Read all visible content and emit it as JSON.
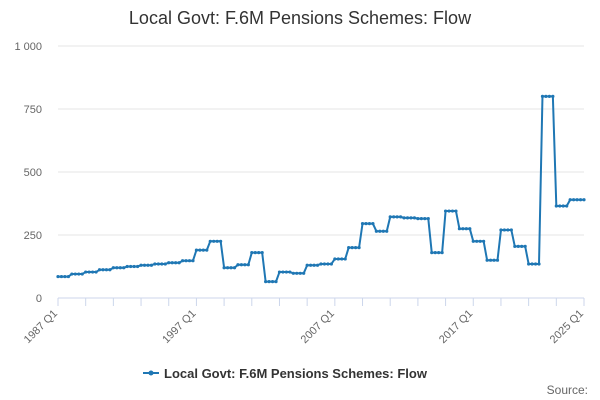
{
  "chart_data": {
    "type": "line",
    "title": "Local Govt: F.6M Pensions Schemes: Flow",
    "xlabel": "",
    "ylabel": "",
    "ylim": [
      0,
      1000
    ],
    "y_ticks": [
      0,
      250,
      500,
      750,
      1000
    ],
    "y_tick_labels": [
      "0",
      "250",
      "500",
      "750",
      "1 000"
    ],
    "x_tick_labels": [
      "1987 Q1",
      "1997 Q1",
      "2007 Q1",
      "2017 Q1",
      "2025 Q1"
    ],
    "x_range": [
      "1987 Q1",
      "2025 Q1"
    ],
    "grid": "horizontal",
    "legend_position": "bottom",
    "series": [
      {
        "name": "Local Govt: F.6M Pensions Schemes: Flow",
        "color": "#1f77b4",
        "segments": [
          {
            "start": "1987 Q1",
            "value": 85,
            "quarters": 4
          },
          {
            "start": "1988 Q1",
            "value": 95,
            "quarters": 4
          },
          {
            "start": "1989 Q1",
            "value": 103,
            "quarters": 4
          },
          {
            "start": "1990 Q1",
            "value": 112,
            "quarters": 4
          },
          {
            "start": "1991 Q1",
            "value": 120,
            "quarters": 4
          },
          {
            "start": "1992 Q1",
            "value": 125,
            "quarters": 4
          },
          {
            "start": "1993 Q1",
            "value": 130,
            "quarters": 4
          },
          {
            "start": "1994 Q1",
            "value": 135,
            "quarters": 4
          },
          {
            "start": "1995 Q1",
            "value": 140,
            "quarters": 4
          },
          {
            "start": "1996 Q1",
            "value": 148,
            "quarters": 4
          },
          {
            "start": "1997 Q1",
            "value": 190,
            "quarters": 4
          },
          {
            "start": "1998 Q1",
            "value": 225,
            "quarters": 4
          },
          {
            "start": "1999 Q1",
            "value": 120,
            "quarters": 4
          },
          {
            "start": "2000 Q1",
            "value": 132,
            "quarters": 4
          },
          {
            "start": "2001 Q1",
            "value": 180,
            "quarters": 4
          },
          {
            "start": "2002 Q1",
            "value": 65,
            "quarters": 4
          },
          {
            "start": "2003 Q1",
            "value": 103,
            "quarters": 4
          },
          {
            "start": "2004 Q1",
            "value": 98,
            "quarters": 4
          },
          {
            "start": "2005 Q1",
            "value": 130,
            "quarters": 4
          },
          {
            "start": "2006 Q1",
            "value": 135,
            "quarters": 4
          },
          {
            "start": "2007 Q1",
            "value": 155,
            "quarters": 4
          },
          {
            "start": "2008 Q1",
            "value": 200,
            "quarters": 4
          },
          {
            "start": "2009 Q1",
            "value": 295,
            "quarters": 4
          },
          {
            "start": "2010 Q1",
            "value": 265,
            "quarters": 4
          },
          {
            "start": "2011 Q1",
            "value": 322,
            "quarters": 4
          },
          {
            "start": "2012 Q1",
            "value": 318,
            "quarters": 4
          },
          {
            "start": "2013 Q1",
            "value": 315,
            "quarters": 4
          },
          {
            "start": "2014 Q1",
            "value": 180,
            "quarters": 4
          },
          {
            "start": "2015 Q1",
            "value": 345,
            "quarters": 4
          },
          {
            "start": "2016 Q1",
            "value": 275,
            "quarters": 4
          },
          {
            "start": "2017 Q1",
            "value": 225,
            "quarters": 4
          },
          {
            "start": "2018 Q1",
            "value": 150,
            "quarters": 4
          },
          {
            "start": "2019 Q1",
            "value": 270,
            "quarters": 4
          },
          {
            "start": "2020 Q1",
            "value": 205,
            "quarters": 4
          },
          {
            "start": "2021 Q1",
            "value": 135,
            "quarters": 4
          },
          {
            "start": "2022 Q1",
            "value": 800,
            "quarters": 4
          },
          {
            "start": "2023 Q1",
            "value": 365,
            "quarters": 4
          },
          {
            "start": "2024 Q1",
            "value": 390,
            "quarters": 5
          }
        ]
      }
    ]
  },
  "credits": "Source:"
}
